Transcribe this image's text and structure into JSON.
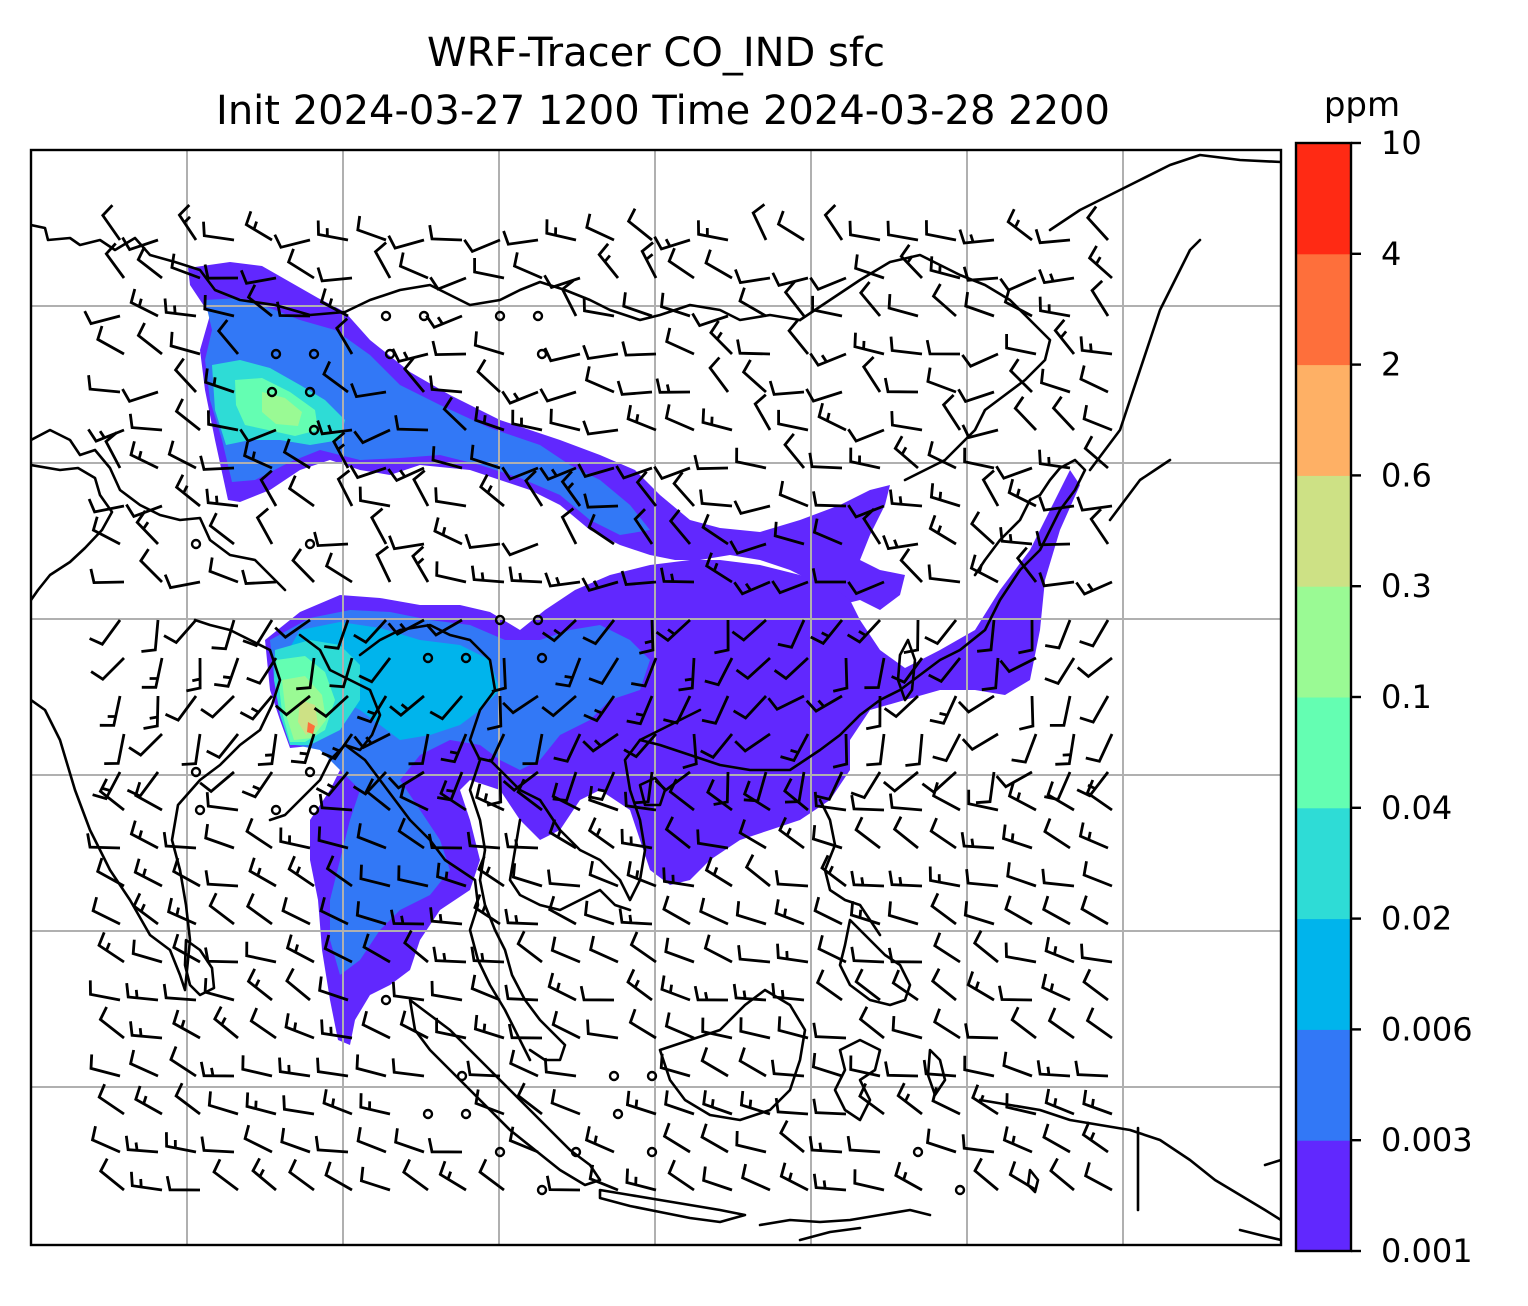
{
  "title": {
    "line1": "WRF-Tracer CO_IND sfc",
    "line2": "Init 2024-03-27 1200 Time 2024-03-28 2200"
  },
  "colorbar": {
    "unit": "ppm",
    "ticks": [
      "0.001",
      "0.003",
      "0.006",
      "0.02",
      "0.04",
      "0.1",
      "0.3",
      "0.6",
      "2",
      "4",
      "10"
    ],
    "colors": [
      "#6128fe",
      "#3278f6",
      "#00b4ec",
      "#2edcd6",
      "#64feb2",
      "#9afa94",
      "#cde185",
      "#feb065",
      "#fe6f3b",
      "#ff2a14"
    ]
  },
  "map": {
    "gridlines": "on",
    "land_color": "#ffffff",
    "coastline_color": "#000000",
    "gridline_color": "#b0b0b0",
    "wind_symbol": "barbs"
  }
}
